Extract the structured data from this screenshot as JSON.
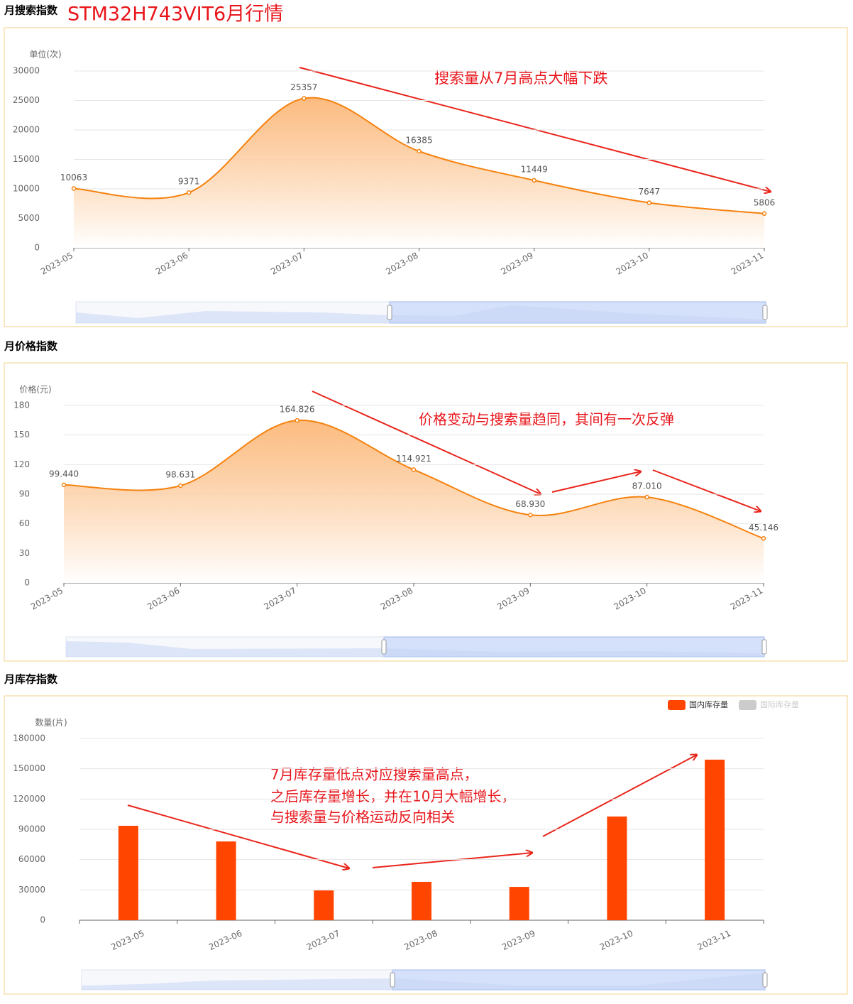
{
  "header": {
    "section_title": "月搜索指数",
    "title": "STM32H743VIT6月行情"
  },
  "chart_data": [
    {
      "type": "line",
      "title": "月搜索指数",
      "y_label": "单位(次)",
      "annotations": [
        "搜索量从7月高点大幅下跌"
      ],
      "categories": [
        "2023-05",
        "2023-06",
        "2023-07",
        "2023-08",
        "2023-09",
        "2023-10",
        "2023-11"
      ],
      "values": [
        10063,
        9371,
        25357,
        16385,
        11449,
        7647,
        5806
      ],
      "color": "#f5820f",
      "ylim": [
        0,
        30000
      ],
      "yticks": [
        0,
        5000,
        10000,
        15000,
        20000,
        25000,
        30000
      ],
      "grid": true
    },
    {
      "type": "line",
      "title": "月价格指数",
      "y_label": "价格(元)",
      "annotations": [
        "价格变动与搜索量趋同，其间有一次反弹"
      ],
      "categories": [
        "2023-05",
        "2023-06",
        "2023-07",
        "2023-08",
        "2023-09",
        "2023-10",
        "2023-11"
      ],
      "values": [
        99.44,
        98.631,
        164.826,
        114.921,
        68.93,
        87.01,
        45.146
      ],
      "value_labels": [
        "99.440",
        "98.631",
        "164.826",
        "114.921",
        "68.930",
        "87.010",
        "45.146"
      ],
      "color": "#f5820f",
      "ylim": [
        0,
        180
      ],
      "yticks": [
        0,
        30,
        60,
        90,
        120,
        150,
        180
      ],
      "grid": true
    },
    {
      "type": "bar",
      "title": "月库存指数",
      "y_label": "数量(片)",
      "annotations": [
        "7月库存量低点对应搜索量高点，",
        "之后库存量增长，并在10月大幅增长，",
        "与搜索量与价格运动反向相关"
      ],
      "categories": [
        "2023-05",
        "2023-06",
        "2023-07",
        "2023-08",
        "2023-09",
        "2023-10",
        "2023-11"
      ],
      "series": [
        {
          "name": "国内库存量",
          "color": "#ff4500",
          "values": [
            93500,
            78000,
            29500,
            38000,
            33000,
            102700,
            159000
          ]
        },
        {
          "name": "国际库存量",
          "color": "#cccccc",
          "visible": false,
          "values": null
        }
      ],
      "legend": "top-right",
      "ylim": [
        0,
        180000
      ],
      "yticks": [
        0,
        30000,
        60000,
        90000,
        120000,
        150000,
        180000
      ],
      "grid": true
    }
  ]
}
